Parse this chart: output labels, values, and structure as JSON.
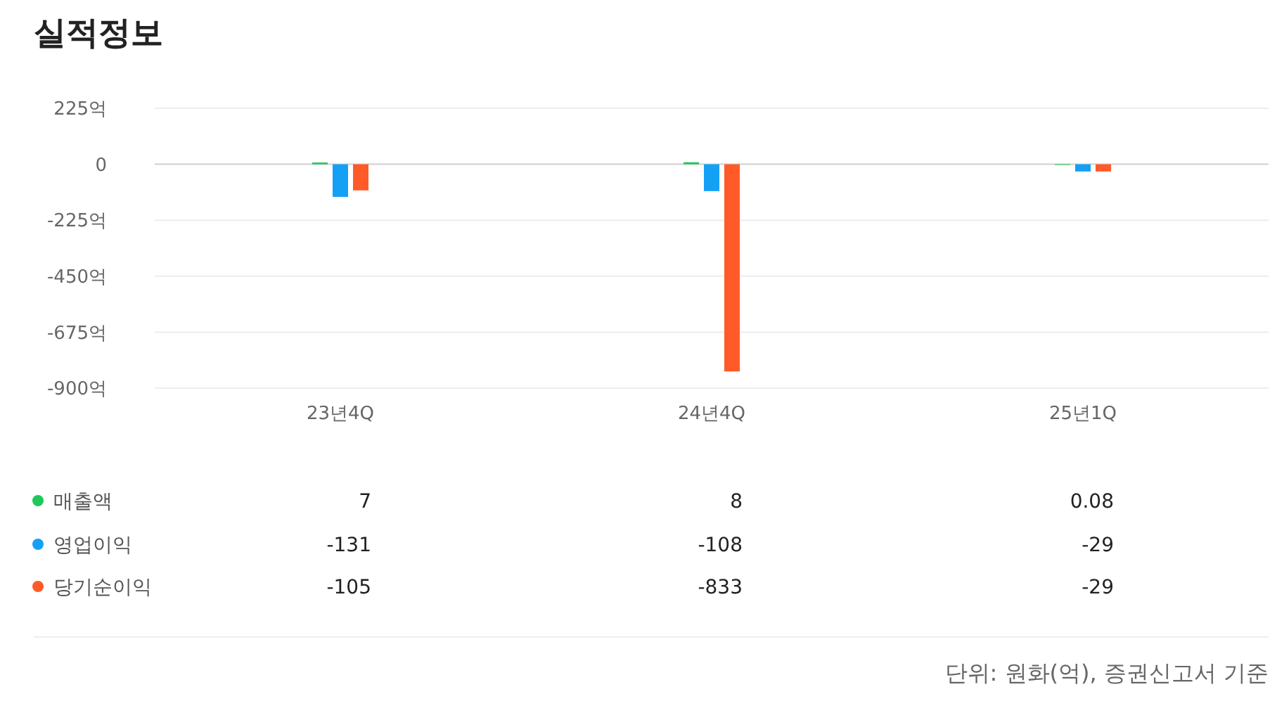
{
  "chart_data": {
    "type": "bar",
    "title": "실적정보",
    "categories": [
      "23년4Q",
      "24년4Q",
      "25년1Q"
    ],
    "series": [
      {
        "name": "매출액",
        "color": "#1ec85a",
        "values": [
          7,
          8,
          0.08
        ]
      },
      {
        "name": "영업이익",
        "color": "#14a0f5",
        "values": [
          -131,
          -108,
          -29
        ]
      },
      {
        "name": "당기순이익",
        "color": "#ff5a28",
        "values": [
          -105,
          -833,
          -29
        ]
      }
    ],
    "ylim": [
      -900,
      225
    ],
    "yticks": [
      {
        "value": 225,
        "label": "225억"
      },
      0,
      {
        "value": -225,
        "label": "-225억"
      },
      {
        "value": -450,
        "label": "-450억"
      },
      {
        "value": -675,
        "label": "-675억"
      },
      {
        "value": -900,
        "label": "-900억"
      }
    ],
    "grid": "y",
    "legend": "bottom",
    "data_labels": true,
    "annotations": [
      "단위: 원화(억), 증권신고서 기준"
    ]
  }
}
